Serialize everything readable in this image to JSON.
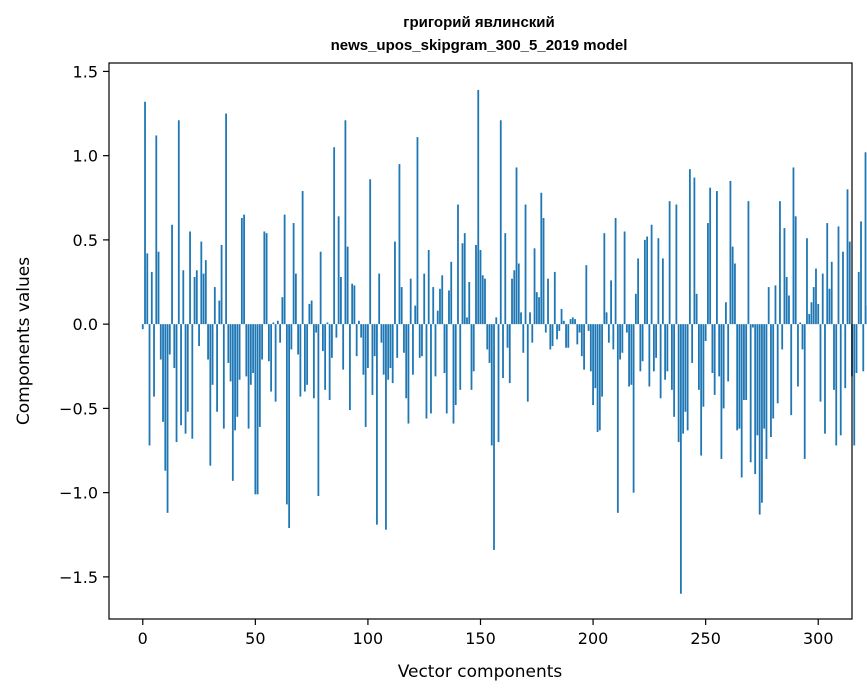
{
  "chart_data": {
    "type": "bar",
    "title_line1": "григорий явлинский",
    "title_line2": "news_upos_skipgram_300_5_2019 model",
    "xlabel": "Vector components",
    "ylabel": "Components values",
    "xlim": [
      -15,
      315
    ],
    "ylim": [
      -1.75,
      1.55
    ],
    "x_ticks": [
      0,
      50,
      100,
      150,
      200,
      250,
      300
    ],
    "x_tick_labels": [
      "0",
      "50",
      "100",
      "150",
      "200",
      "250",
      "300"
    ],
    "y_ticks": [
      -1.5,
      -1.0,
      -0.5,
      0.0,
      0.5,
      1.0,
      1.5
    ],
    "y_tick_labels": [
      "−1.5",
      "−1.0",
      "−0.5",
      "0.0",
      "0.5",
      "1.0",
      "1.5"
    ],
    "bar_color": "#1f77b4",
    "grid": false,
    "values": [
      -0.03,
      1.32,
      0.42,
      -0.72,
      0.31,
      -0.43,
      1.12,
      0.43,
      -0.21,
      -0.58,
      -0.87,
      -1.12,
      -0.18,
      0.59,
      -0.26,
      -0.7,
      1.21,
      -0.6,
      0.32,
      -0.65,
      -0.52,
      0.55,
      -0.68,
      0.28,
      0.32,
      -0.13,
      0.49,
      0.3,
      0.38,
      -0.21,
      -0.84,
      -0.36,
      0.22,
      -0.52,
      0.14,
      0.47,
      -0.62,
      1.25,
      -0.23,
      -0.34,
      -0.93,
      -0.63,
      -0.55,
      -0.33,
      0.63,
      0.65,
      -0.31,
      -0.62,
      -0.36,
      -0.29,
      -1.01,
      -1.01,
      -0.61,
      -0.21,
      0.55,
      0.54,
      -0.22,
      -0.4,
      0.01,
      -0.46,
      0.02,
      -0.11,
      0.16,
      0.65,
      -1.07,
      -1.21,
      -0.15,
      0.6,
      0.3,
      -0.18,
      -0.43,
      0.79,
      -0.4,
      -0.36,
      0.12,
      0.14,
      -0.44,
      -0.05,
      -1.02,
      0.43,
      -0.16,
      -0.39,
      0.01,
      -0.45,
      -0.2,
      1.05,
      -0.08,
      0.64,
      0.28,
      -0.27,
      1.21,
      0.46,
      -0.51,
      0.24,
      0.23,
      -0.19,
      0.02,
      -0.08,
      -0.3,
      -0.61,
      -0.26,
      0.86,
      -0.42,
      -0.19,
      -1.19,
      0.3,
      -0.11,
      -0.3,
      -1.22,
      -0.33,
      -0.26,
      -0.35,
      0.49,
      -0.2,
      0.95,
      0.22,
      -0.17,
      -0.44,
      -0.59,
      0.27,
      -0.3,
      0.11,
      1.11,
      -0.2,
      -0.19,
      0.3,
      -0.56,
      0.44,
      -0.53,
      0.22,
      -0.31,
      0.08,
      0.21,
      0.29,
      -0.29,
      -0.53,
      0.2,
      0.37,
      -0.59,
      -0.48,
      0.71,
      -0.39,
      0.48,
      0.54,
      0.04,
      0.25,
      -0.39,
      -0.28,
      0.47,
      1.39,
      0.44,
      0.29,
      0.27,
      -0.15,
      -0.23,
      -0.72,
      -1.34,
      0.04,
      -0.7,
      1.21,
      -0.32,
      0.54,
      -0.14,
      -0.35,
      0.27,
      0.32,
      0.93,
      0.36,
      0.07,
      -0.17,
      0.71,
      -0.46,
      0.07,
      -0.11,
      0.45,
      0.19,
      0.16,
      0.78,
      0.63,
      -0.05,
      0.27,
      -0.15,
      -0.13,
      0.31,
      -0.09,
      -0.04,
      0.09,
      0.02,
      -0.14,
      -0.14,
      0.03,
      0.04,
      0.03,
      -0.12,
      -0.05,
      -0.19,
      -0.27,
      0.35,
      -0.04,
      -0.28,
      -0.48,
      -0.38,
      -0.64,
      -0.63,
      -0.43,
      0.54,
      0.07,
      -0.11,
      0.26,
      -0.15,
      0.63,
      -1.12,
      -0.21,
      -0.17,
      0.55,
      -0.05,
      -0.37,
      -0.36,
      -1.0,
      0.18,
      0.39,
      -0.28,
      -0.22,
      0.5,
      0.52,
      -0.37,
      0.59,
      -0.28,
      -0.2,
      0.51,
      -0.44,
      0.39,
      -0.33,
      -0.28,
      0.73,
      -0.39,
      -0.55,
      0.71,
      -0.7,
      -1.6,
      -0.65,
      -0.52,
      -0.63,
      0.92,
      -0.23,
      0.87,
      0.18,
      -0.39,
      -0.78,
      -0.49,
      -0.1,
      0.6,
      0.81,
      -0.29,
      -0.42,
      0.79,
      -0.31,
      -0.8,
      -0.5,
      0.13,
      -0.34,
      0.85,
      0.46,
      0.36,
      -0.63,
      -0.62,
      -0.91,
      -0.45,
      -0.45,
      0.73,
      -0.82,
      -0.02,
      -0.89,
      -0.66,
      -1.13,
      -1.06,
      -0.62,
      -0.8,
      0.22,
      -0.67,
      -0.56,
      0.23,
      -0.47,
      0.73,
      -0.15,
      0.57,
      0.28,
      0.17,
      -0.54,
      0.93,
      0.64,
      -0.37,
      0.01,
      -0.15,
      -0.8,
      0.51,
      0.06,
      0.13,
      0.22,
      0.33,
      0.12,
      -0.46,
      0.3,
      -0.65,
      0.6,
      0.21,
      0.37,
      -0.39,
      -0.72,
      0.58,
      -0.66,
      0.43,
      -0.38,
      0.8,
      0.49,
      -0.31,
      -0.72,
      -0.29,
      0.31,
      0.61,
      -0.28,
      1.02,
      0.11
    ]
  }
}
